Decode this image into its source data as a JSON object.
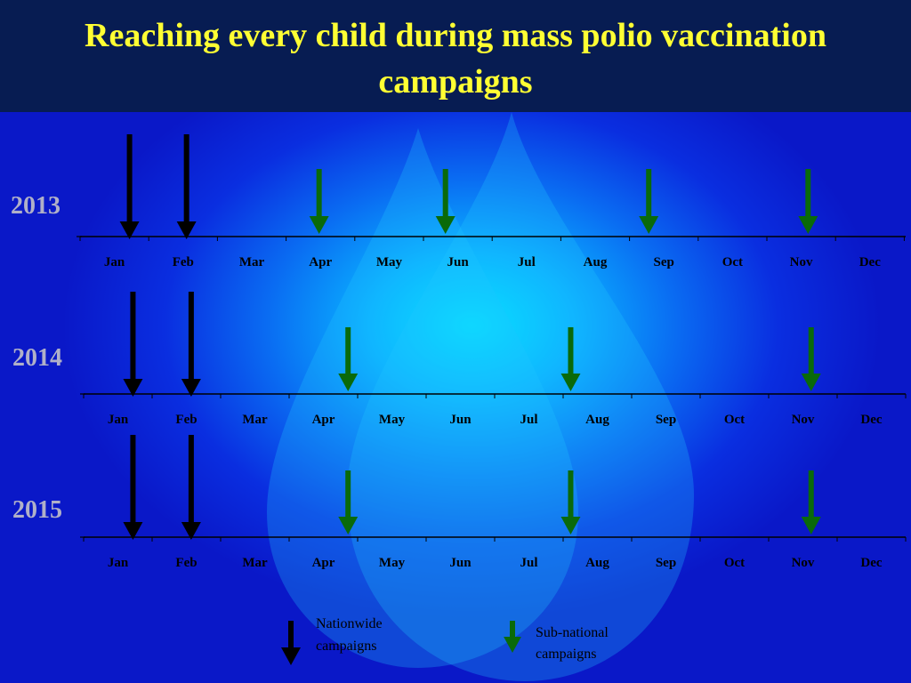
{
  "slide": {
    "title_line1": "Reaching every child during mass polio vaccination",
    "title_line2": "campaigns"
  },
  "months": [
    "Jan",
    "Feb",
    "Mar",
    "Apr",
    "May",
    "Jun",
    "Jul",
    "Aug",
    "Sep",
    "Oct",
    "Nov",
    "Dec"
  ],
  "timelines": [
    {
      "year": "2013",
      "nationwide_months": [
        1.22,
        2.05
      ],
      "subnational_months": [
        3.98,
        5.82,
        8.78,
        11.1
      ]
    },
    {
      "year": "2014",
      "nationwide_months": [
        1.22,
        2.07
      ],
      "subnational_months": [
        4.36,
        7.61,
        11.12
      ]
    },
    {
      "year": "2015",
      "nationwide_months": [
        1.22,
        2.07
      ],
      "subnational_months": [
        4.36,
        7.61,
        11.12
      ]
    }
  ],
  "legend": {
    "nationwide_line1": "Nationwide",
    "nationwide_line2": "campaigns",
    "subnational_line1": "Sub-national",
    "subnational_line2": "campaigns"
  },
  "colors": {
    "title_text": "#ffff33",
    "nationwide_arrow": "#000000",
    "subnational_arrow": "#0a6a0a"
  }
}
